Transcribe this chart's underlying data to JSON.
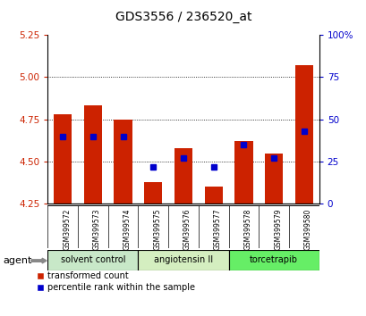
{
  "title": "GDS3556 / 236520_at",
  "samples": [
    "GSM399572",
    "GSM399573",
    "GSM399574",
    "GSM399575",
    "GSM399576",
    "GSM399577",
    "GSM399578",
    "GSM399579",
    "GSM399580"
  ],
  "transformed_counts": [
    4.78,
    4.83,
    4.75,
    4.38,
    4.58,
    4.35,
    4.62,
    4.55,
    5.07
  ],
  "percentile_ranks": [
    40,
    40,
    40,
    22,
    27,
    22,
    35,
    27,
    43
  ],
  "ylim_left": [
    4.25,
    5.25
  ],
  "ylim_right": [
    0,
    100
  ],
  "yticks_left": [
    4.25,
    4.5,
    4.75,
    5.0,
    5.25
  ],
  "yticks_right": [
    0,
    25,
    50,
    75,
    100
  ],
  "bar_color": "#cc2200",
  "dot_color": "#0000cc",
  "agent_groups": [
    {
      "label": "solvent control",
      "start": 0,
      "end": 2,
      "color": "#c8e8c8"
    },
    {
      "label": "angiotensin II",
      "start": 3,
      "end": 5,
      "color": "#d4eec0"
    },
    {
      "label": "torcetrapib",
      "start": 6,
      "end": 8,
      "color": "#66ee66"
    }
  ],
  "agent_label": "agent",
  "legend_bar_label": "transformed count",
  "legend_dot_label": "percentile rank within the sample",
  "axis_left_color": "#cc2200",
  "axis_right_color": "#0000cc",
  "background_color": "#ffffff",
  "tick_bg_color": "#cccccc",
  "grid_yticks": [
    4.5,
    4.75,
    5.0
  ]
}
